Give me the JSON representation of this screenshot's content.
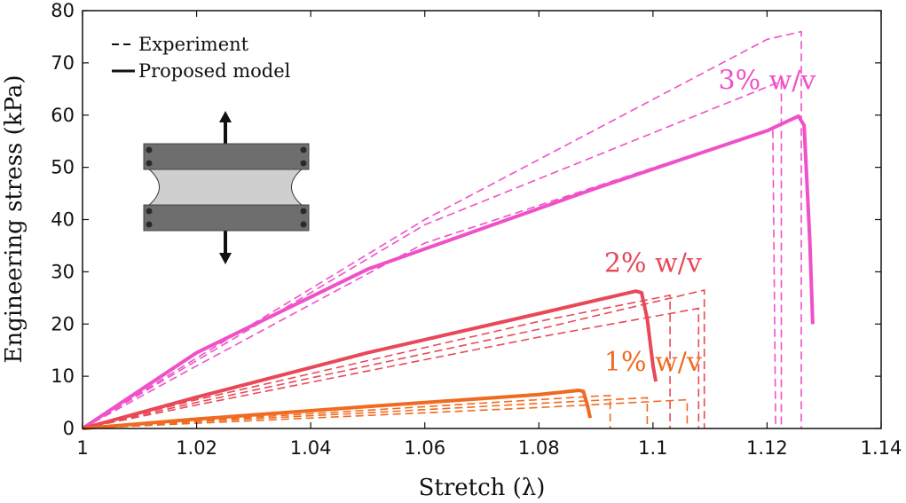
{
  "chart_data": {
    "type": "line",
    "xlabel": "Stretch (λ)",
    "ylabel": "Engineering stress (kPa)",
    "xlim": [
      1,
      1.14
    ],
    "ylim": [
      0,
      80
    ],
    "xticks": [
      1,
      1.02,
      1.04,
      1.06,
      1.08,
      1.1,
      1.12,
      1.14
    ],
    "xtick_labels": [
      "1",
      "1.02",
      "1.04",
      "1.06",
      "1.08",
      "1.1",
      "1.12",
      "1.14"
    ],
    "yticks": [
      0,
      10,
      20,
      30,
      40,
      50,
      60,
      70,
      80
    ],
    "ytick_labels": [
      "0",
      "10",
      "20",
      "30",
      "40",
      "50",
      "60",
      "70",
      "80"
    ],
    "legend": {
      "position": "top-left",
      "entries": [
        {
          "label": "Experiment",
          "style": "dashed"
        },
        {
          "label": "Proposed model",
          "style": "solid"
        }
      ]
    },
    "groups": [
      {
        "name": "3% w/v",
        "color": "#f050c8",
        "label_position": [
          1.12,
          65
        ],
        "experiment": [
          {
            "x": [
              1,
              1.02,
              1.06,
              1.12,
              1.126,
              1.126
            ],
            "y": [
              0,
              13.5,
              40,
              74.5,
              76,
              0
            ]
          },
          {
            "x": [
              1,
              1.02,
              1.06,
              1.1225,
              1.1225,
              1.1225
            ],
            "y": [
              0,
              13,
              39,
              66.5,
              65,
              0
            ]
          },
          {
            "x": [
              1,
              1.02,
              1.06,
              1.121,
              1.1215
            ],
            "y": [
              0,
              12,
              35.5,
              57.5,
              0
            ]
          }
        ],
        "model": {
          "x": [
            1,
            1.02,
            1.05,
            1.09,
            1.12,
            1.1255,
            1.1265,
            1.1275,
            1.128
          ],
          "y": [
            0,
            14.5,
            30.5,
            46,
            57,
            59.8,
            58,
            36,
            20
          ]
        }
      },
      {
        "name": "2% w/v",
        "color": "#e84858",
        "label_position": [
          1.1,
          30
        ],
        "experiment": [
          {
            "x": [
              1,
              1.02,
              1.05,
              1.08,
              1.103,
              1.103
            ],
            "y": [
              0,
              5.5,
              13,
              20.5,
              25.5,
              0
            ]
          },
          {
            "x": [
              1,
              1.02,
              1.05,
              1.08,
              1.109,
              1.109
            ],
            "y": [
              0,
              5,
              12,
              19,
              26.5,
              0
            ]
          },
          {
            "x": [
              1,
              1.02,
              1.05,
              1.08,
              1.108,
              1.108
            ],
            "y": [
              0,
              4.5,
              11,
              17.5,
              23,
              0
            ]
          }
        ],
        "model": {
          "x": [
            1,
            1.02,
            1.05,
            1.08,
            1.097,
            1.098,
            1.099,
            1.1,
            1.1005
          ],
          "y": [
            0,
            6,
            14.5,
            22,
            26.3,
            26,
            21,
            12,
            9
          ]
        }
      },
      {
        "name": "1% w/v",
        "color": "#f06a20",
        "label_position": [
          1.1,
          11
        ],
        "experiment": [
          {
            "x": [
              1,
              1.02,
              1.05,
              1.09,
              1.0925,
              1.0925
            ],
            "y": [
              0,
              1.5,
              3.5,
              6.2,
              6.3,
              0
            ]
          },
          {
            "x": [
              1,
              1.02,
              1.05,
              1.08,
              1.099,
              1.099
            ],
            "y": [
              0,
              1.3,
              3,
              4.8,
              5.9,
              0
            ]
          },
          {
            "x": [
              1,
              1.02,
              1.05,
              1.08,
              1.106,
              1.106
            ],
            "y": [
              0,
              1,
              2.5,
              4,
              5.5,
              0
            ]
          }
        ],
        "model": {
          "x": [
            1,
            1.02,
            1.05,
            1.08,
            1.087,
            1.0878,
            1.0885,
            1.089
          ],
          "y": [
            0,
            1.8,
            4.2,
            6.5,
            7.3,
            7.1,
            4.5,
            2
          ]
        }
      }
    ]
  }
}
